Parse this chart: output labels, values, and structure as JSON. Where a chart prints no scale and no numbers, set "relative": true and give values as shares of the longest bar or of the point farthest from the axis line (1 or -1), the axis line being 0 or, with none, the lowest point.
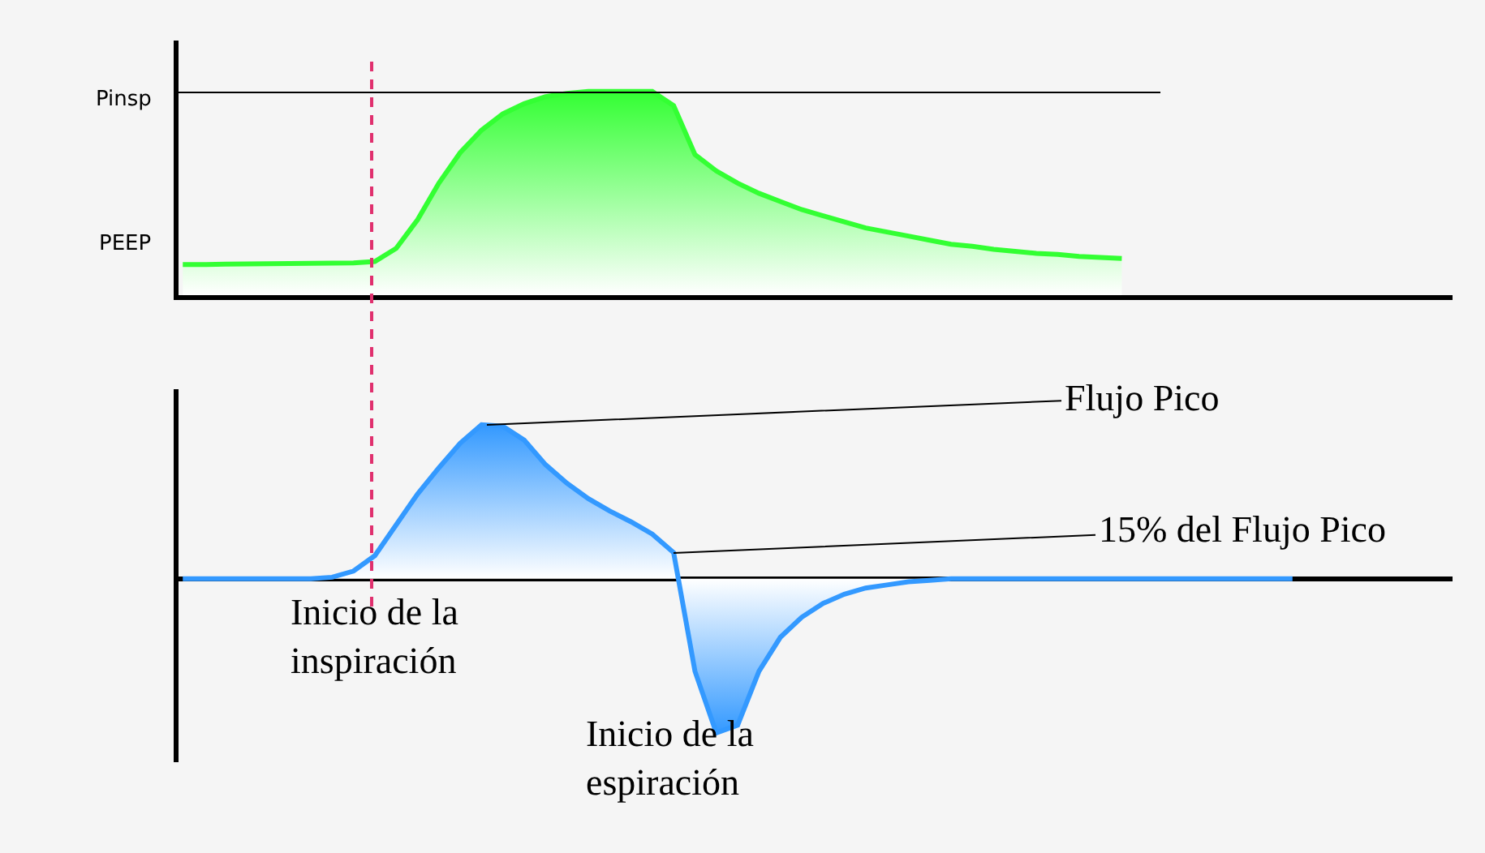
{
  "chart_data": [
    {
      "type": "area",
      "relative": true,
      "categories": [
        null,
        null,
        null,
        null,
        null,
        null,
        null,
        null,
        null,
        null,
        null,
        null,
        null,
        null,
        null,
        null,
        null,
        null,
        null,
        null,
        null,
        null,
        null,
        null,
        null,
        null,
        null,
        null,
        null,
        null,
        null,
        null,
        null,
        null,
        null,
        null,
        null,
        null,
        null,
        null,
        null,
        null,
        null,
        null,
        null,
        null,
        null,
        null,
        null,
        null,
        null,
        null,
        null,
        null,
        null,
        null,
        null,
        null,
        null,
        null
      ],
      "series": [
        {
          "color": "#33ff33",
          "values": [
            0.15,
            0.15,
            0.152,
            0.153,
            0.154,
            0.155,
            0.156,
            0.157,
            0.158,
            0.165,
            0.23,
            0.37,
            0.55,
            0.7,
            0.81,
            0.89,
            0.94,
            0.975,
            0.99,
            1,
            1,
            1,
            1,
            0.93,
            0.69,
            0.61,
            0.55,
            0.5,
            0.46,
            0.42,
            0.39,
            0.36,
            0.33,
            0.31,
            0.29,
            0.27,
            0.25,
            0.24,
            0.225,
            0.215,
            0.205,
            0.2,
            0.19,
            0.185,
            0.18,
            null,
            null,
            null,
            null,
            null,
            null,
            null,
            null,
            null,
            null,
            null,
            null,
            null,
            null,
            null
          ]
        }
      ],
      "annotations": [
        "Pinsp",
        "PEEP"
      ]
    },
    {
      "type": "area",
      "relative": true,
      "categories": [
        null,
        null,
        null,
        null,
        null,
        null,
        null,
        null,
        null,
        null,
        null,
        null,
        null,
        null,
        null,
        null,
        null,
        null,
        null,
        null,
        null,
        null,
        null,
        null,
        null,
        null,
        null,
        null,
        null,
        null,
        null,
        null,
        null,
        null,
        null,
        null,
        null,
        null,
        null,
        null,
        null,
        null,
        null,
        null,
        null,
        null,
        null,
        null,
        null,
        null,
        null,
        null,
        null,
        null,
        null,
        null,
        null,
        null,
        null,
        null
      ],
      "series": [
        {
          "color": "#3399ff",
          "values": [
            0,
            0,
            0,
            0,
            0,
            0,
            0,
            0.01,
            0.05,
            0.15,
            0.35,
            0.55,
            0.72,
            0.88,
            1,
            0.99,
            0.9,
            0.74,
            0.62,
            0.52,
            0.44,
            0.37,
            0.29,
            0.17,
            -0.6,
            -1,
            -0.95,
            -0.6,
            -0.38,
            -0.25,
            -0.16,
            -0.1,
            -0.06,
            -0.04,
            -0.02,
            -0.01,
            0,
            0,
            0,
            0,
            0,
            0,
            0,
            0,
            0,
            0,
            0,
            0,
            0,
            0,
            0,
            0,
            0,
            null,
            null,
            null,
            null,
            null,
            null,
            null
          ]
        }
      ],
      "annotations": [
        "Flujo Pico",
        "15% del Flujo Pico",
        "Inicio de la\ninspiración",
        "Inicio de la\nespiración"
      ]
    }
  ]
}
